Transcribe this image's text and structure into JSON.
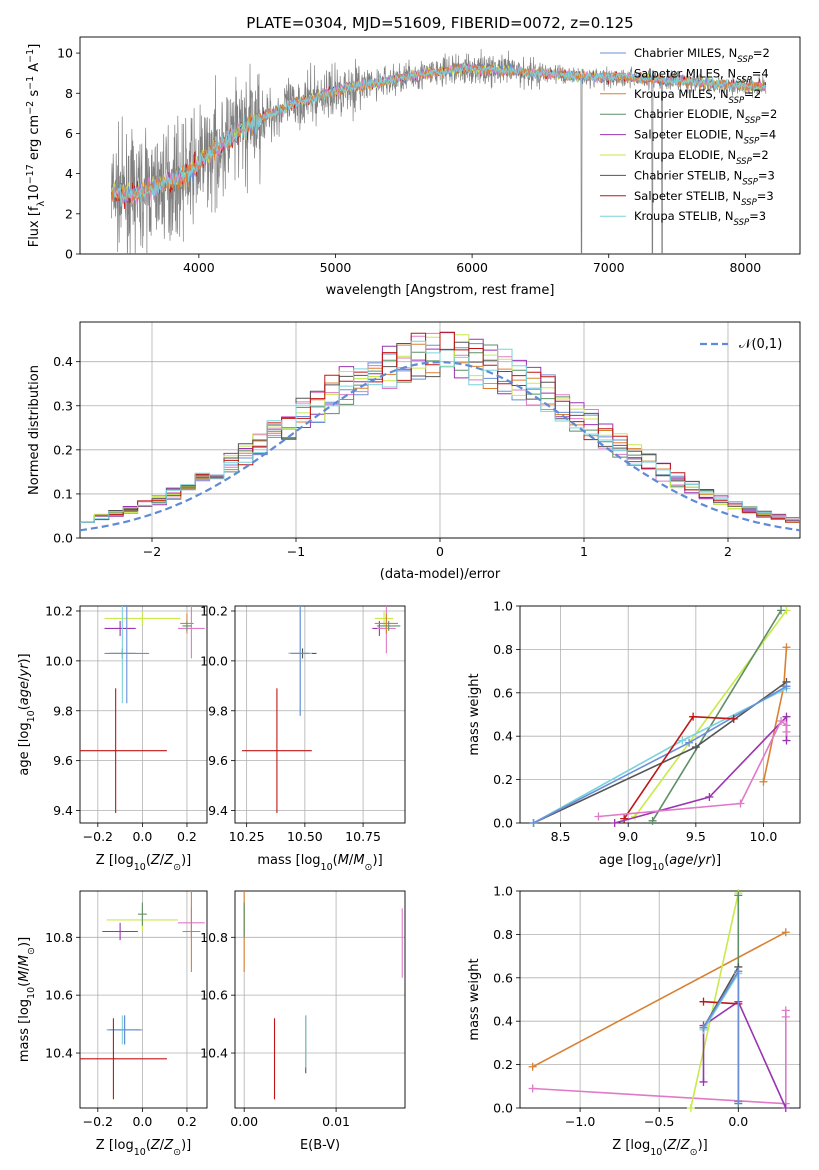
{
  "colors": {
    "chabrier_miles": "#6a8fd8",
    "salpeter_miles": "#e07ac8",
    "kroupa_miles": "#d98032",
    "chabrier_elodie": "#5f8f66",
    "salpeter_elodie": "#9a35b0",
    "kroupa_elodie": "#c8ea4a",
    "chabrier_stelib": "#555555",
    "salpeter_stelib": "#c01616",
    "kroupa_stelib": "#79d3dc",
    "spectrum": "#808080",
    "normal": "#5f8ad6",
    "grid": "#b0b0b0"
  },
  "chart_data": [
    {
      "id": "spectrum",
      "type": "line",
      "title": "PLATE=0304, MJD=51609, FIBERID=0072, z=0.125",
      "xlabel": "wavelength [Angstrom, rest frame]",
      "ylabel": "Flux [f_λ10^-17 erg cm^-2 s^-1 A^-1]",
      "xlim": [
        3130,
        8400
      ],
      "ylim": [
        0,
        10.8
      ],
      "xticks": [
        4000,
        5000,
        6000,
        7000,
        8000
      ],
      "yticks": [
        0,
        2,
        4,
        6,
        8,
        10
      ],
      "grid": false,
      "legend_position": "top-right",
      "legend": [
        {
          "name": "Chabrier MILES, N_SSP=2",
          "color": "chabrier_miles"
        },
        {
          "name": "Salpeter MILES, N_SSP=4",
          "color": "salpeter_miles"
        },
        {
          "name": "Kroupa MILES, N_SSP=2",
          "color": "kroupa_miles"
        },
        {
          "name": "Chabrier ELODIE, N_SSP=2",
          "color": "chabrier_elodie"
        },
        {
          "name": "Salpeter ELODIE, N_SSP=4",
          "color": "salpeter_elodie"
        },
        {
          "name": "Kroupa ELODIE, N_SSP=2",
          "color": "kroupa_elodie"
        },
        {
          "name": "Chabrier STELIB, N_SSP=3",
          "color": "chabrier_stelib"
        },
        {
          "name": "Salpeter STELIB, N_SSP=3",
          "color": "salpeter_stelib"
        },
        {
          "name": "Kroupa STELIB, N_SSP=3",
          "color": "kroupa_stelib"
        }
      ],
      "continuum_x": [
        3360,
        3500,
        3700,
        3900,
        4100,
        4300,
        4500,
        4700,
        4900,
        5100,
        5300,
        5500,
        5700,
        5900,
        6100,
        6300,
        6500,
        6700,
        6900,
        7100,
        7300,
        7500,
        7700,
        7900,
        8150
      ],
      "continuum_y": [
        3.1,
        2.9,
        3.4,
        3.9,
        5.1,
        6.1,
        6.9,
        7.5,
        7.9,
        8.3,
        8.5,
        8.8,
        9.0,
        9.2,
        9.2,
        9.1,
        9.0,
        8.9,
        8.8,
        8.8,
        8.7,
        8.6,
        8.5,
        8.4,
        8.3
      ]
    },
    {
      "id": "residuals",
      "type": "step",
      "xlabel": "(data-model)/error",
      "ylabel": "Normed distribution",
      "xlim": [
        -2.5,
        2.5
      ],
      "ylim": [
        0,
        0.49
      ],
      "xticks": [
        -2,
        -1,
        0,
        1,
        2
      ],
      "yticks": [
        0.0,
        0.1,
        0.2,
        0.3,
        0.4
      ],
      "grid": true,
      "legend_position": "top-right",
      "normal_label": "𝒩(0,1)",
      "bin_width": 0.1,
      "bin_start": -2.5
    },
    {
      "id": "age_vs_Z",
      "type": "errorbar",
      "xlabel": "Z [log10(Z/Z⊙)]",
      "ylabel": "age  [log10(age/yr)]",
      "xlim": [
        -0.28,
        0.29
      ],
      "ylim": [
        9.35,
        10.22
      ],
      "xticks": [
        -0.2,
        0.0,
        0.2
      ],
      "yticks": [
        9.4,
        9.6,
        9.8,
        10.0,
        10.2
      ],
      "grid": true,
      "points": [
        {
          "color": "kroupa_elodie",
          "x": 0.0,
          "y": 10.17,
          "xerr": 0.17,
          "yerr": 0.03
        },
        {
          "color": "salpeter_elodie",
          "x": -0.1,
          "y": 10.13,
          "xerr": 0.07,
          "yerr": 0.03
        },
        {
          "color": "salpeter_miles",
          "x": 0.22,
          "y": 10.13,
          "xerr": 0.06,
          "yerr": 0.12
        },
        {
          "color": "kroupa_miles",
          "x": 0.2,
          "y": 10.15,
          "xerr": 0.03,
          "yerr": 0.04
        },
        {
          "color": "chabrier_elodie",
          "x": 0.2,
          "y": 10.14,
          "xerr": 0.02,
          "yerr": 0.02
        },
        {
          "color": "chabrier_stelib",
          "x": -0.09,
          "y": 10.03,
          "xerr": 0.06,
          "yerr": 0.02
        },
        {
          "color": "kroupa_stelib",
          "x": -0.09,
          "y": 10.03,
          "xerr": 0.05,
          "yerr": 0.2
        },
        {
          "color": "chabrier_miles",
          "x": -0.07,
          "y": 10.03,
          "xerr": 0.1,
          "yerr": 0.2
        },
        {
          "color": "salpeter_stelib",
          "x": -0.12,
          "y": 9.64,
          "xerr": 0.23,
          "yerr": 0.25
        }
      ]
    },
    {
      "id": "age_vs_mass",
      "type": "errorbar",
      "xlabel": "mass [log10(M/M⊙)]",
      "ylabel": "",
      "xlim": [
        10.2,
        10.93
      ],
      "ylim": [
        9.35,
        10.22
      ],
      "xticks": [
        10.25,
        10.5,
        10.75
      ],
      "yticks": [
        9.4,
        9.6,
        9.8,
        10.0,
        10.2
      ],
      "grid": true,
      "points": [
        {
          "color": "kroupa_elodie",
          "x": 10.84,
          "y": 10.17,
          "xerr": 0.04,
          "yerr": 0.03
        },
        {
          "color": "salpeter_elodie",
          "x": 10.82,
          "y": 10.13,
          "xerr": 0.03,
          "yerr": 0.03
        },
        {
          "color": "salpeter_miles",
          "x": 10.85,
          "y": 10.13,
          "xerr": 0.04,
          "yerr": 0.1
        },
        {
          "color": "kroupa_miles",
          "x": 10.85,
          "y": 10.15,
          "xerr": 0.05,
          "yerr": 0.04
        },
        {
          "color": "chabrier_elodie",
          "x": 10.86,
          "y": 10.14,
          "xerr": 0.05,
          "yerr": 0.02
        },
        {
          "color": "chabrier_stelib",
          "x": 10.49,
          "y": 10.03,
          "xerr": 0.06,
          "yerr": 0.02
        },
        {
          "color": "kroupa_stelib",
          "x": 10.48,
          "y": 10.03,
          "xerr": 0.05,
          "yerr": 0.25
        },
        {
          "color": "chabrier_miles",
          "x": 10.48,
          "y": 10.03,
          "xerr": 0.04,
          "yerr": 0.25
        },
        {
          "color": "salpeter_stelib",
          "x": 10.38,
          "y": 9.64,
          "xerr": 0.15,
          "yerr": 0.25
        }
      ]
    },
    {
      "id": "massweight_vs_age",
      "type": "line",
      "xlabel": "age  [log10(age/yr)]",
      "ylabel": "mass weight",
      "xlim": [
        8.2,
        10.27
      ],
      "ylim": [
        0,
        1.0
      ],
      "xticks": [
        8.5,
        9.0,
        9.5,
        10.0
      ],
      "yticks": [
        0.0,
        0.2,
        0.4,
        0.6,
        0.8,
        1.0
      ],
      "grid": true,
      "series": [
        {
          "color": "kroupa_elodie",
          "x": [
            9.05,
            10.17
          ],
          "y": [
            0.03,
            0.98
          ]
        },
        {
          "color": "chabrier_elodie",
          "x": [
            9.18,
            10.13
          ],
          "y": [
            0.01,
            0.98
          ]
        },
        {
          "color": "kroupa_miles",
          "x": [
            10.0,
            10.15,
            10.17
          ],
          "y": [
            0.19,
            0.63,
            0.81
          ]
        },
        {
          "color": "chabrier_stelib",
          "x": [
            8.3,
            9.5,
            10.17
          ],
          "y": [
            0.0,
            0.35,
            0.65
          ]
        },
        {
          "color": "kroupa_stelib",
          "x": [
            8.3,
            9.4,
            10.17
          ],
          "y": [
            0.0,
            0.38,
            0.62
          ]
        },
        {
          "color": "chabrier_miles",
          "x": [
            8.3,
            9.45,
            10.17
          ],
          "y": [
            0.0,
            0.37,
            0.63
          ]
        },
        {
          "color": "salpeter_stelib",
          "x": [
            8.97,
            9.48,
            9.78
          ],
          "y": [
            0.02,
            0.49,
            0.48
          ]
        },
        {
          "color": "salpeter_elodie",
          "x": [
            8.9,
            9.6,
            10.17,
            10.17
          ],
          "y": [
            0.0,
            0.12,
            0.49,
            0.38
          ]
        },
        {
          "color": "salpeter_miles",
          "x": [
            8.78,
            9.83,
            10.13,
            10.17,
            10.17
          ],
          "y": [
            0.03,
            0.09,
            0.47,
            0.45,
            0.42
          ]
        }
      ]
    },
    {
      "id": "mass_vs_Z",
      "type": "errorbar",
      "xlabel": "Z [log10(Z/Z⊙)]",
      "ylabel": "mass [log10(M/M⊙)]",
      "xlim": [
        -0.28,
        0.29
      ],
      "ylim": [
        10.21,
        10.96
      ],
      "xticks": [
        -0.2,
        0.0,
        0.2
      ],
      "yticks": [
        10.4,
        10.6,
        10.8
      ],
      "grid": true,
      "points": [
        {
          "color": "kroupa_elodie",
          "x": 0.0,
          "y": 10.86,
          "xerr": 0.16,
          "yerr": 0.04
        },
        {
          "color": "salpeter_elodie",
          "x": -0.1,
          "y": 10.82,
          "xerr": 0.08,
          "yerr": 0.03
        },
        {
          "color": "salpeter_miles",
          "x": 0.22,
          "y": 10.85,
          "xerr": 0.06,
          "yerr": 0.05
        },
        {
          "color": "kroupa_miles",
          "x": 0.22,
          "y": 10.82,
          "xerr": 0.04,
          "yerr": 0.14
        },
        {
          "color": "chabrier_elodie",
          "x": 0.0,
          "y": 10.88,
          "xerr": 0.02,
          "yerr": 0.04
        },
        {
          "color": "chabrier_stelib",
          "x": -0.08,
          "y": 10.48,
          "xerr": 0.07,
          "yerr": 0.05
        },
        {
          "color": "kroupa_stelib",
          "x": -0.09,
          "y": 10.48,
          "xerr": 0.06,
          "yerr": 0.05
        },
        {
          "color": "chabrier_miles",
          "x": -0.08,
          "y": 10.48,
          "xerr": 0.08,
          "yerr": 0.05
        },
        {
          "color": "salpeter_stelib",
          "x": -0.13,
          "y": 10.38,
          "xerr": 0.24,
          "yerr": 0.14
        }
      ]
    },
    {
      "id": "mass_vs_EBV",
      "type": "errorbar",
      "xlabel": "E(B-V)",
      "ylabel": "",
      "xlim": [
        -0.001,
        0.0175
      ],
      "ylim": [
        10.21,
        10.96
      ],
      "xticks": [
        0.0,
        0.01
      ],
      "xtick_labels": [
        "0.00",
        "0.01"
      ],
      "yticks": [
        10.4,
        10.6,
        10.8
      ],
      "grid": true,
      "points": [
        {
          "color": "kroupa_elodie",
          "x": 0.0,
          "y": 10.86,
          "xerr": 0.0,
          "yerr": 0.04
        },
        {
          "color": "kroupa_miles",
          "x": 0.0,
          "y": 10.82,
          "xerr": 0.0,
          "yerr": 0.14
        },
        {
          "color": "chabrier_elodie",
          "x": 0.0,
          "y": 10.86,
          "xerr": 0.0,
          "yerr": 0.06
        },
        {
          "color": "salpeter_miles",
          "x": 0.0172,
          "y": 10.78,
          "xerr": 0.0,
          "yerr": 0.12
        },
        {
          "color": "chabrier_stelib",
          "x": 0.0067,
          "y": 10.43,
          "xerr": 0.0,
          "yerr": 0.1
        },
        {
          "color": "kroupa_stelib",
          "x": 0.0067,
          "y": 10.44,
          "xerr": 0.0,
          "yerr": 0.09
        },
        {
          "color": "salpeter_stelib",
          "x": 0.0033,
          "y": 10.38,
          "xerr": 0.0,
          "yerr": 0.14
        }
      ]
    },
    {
      "id": "massweight_vs_Z",
      "type": "line",
      "xlabel": "Z [log10(Z/Z⊙)]",
      "ylabel": "mass weight",
      "xlim": [
        -1.38,
        0.39
      ],
      "ylim": [
        0,
        1.0
      ],
      "xticks": [
        -1.0,
        -0.5,
        0.0
      ],
      "yticks": [
        0.0,
        0.2,
        0.4,
        0.6,
        0.8,
        1.0
      ],
      "grid": true,
      "series": [
        {
          "color": "kroupa_miles",
          "x": [
            -1.3,
            0.3
          ],
          "y": [
            0.19,
            0.81
          ]
        },
        {
          "color": "salpeter_miles",
          "x": [
            -1.3,
            0.3,
            0.3,
            0.3
          ],
          "y": [
            0.09,
            0.02,
            0.42,
            0.45
          ]
        },
        {
          "color": "kroupa_elodie",
          "x": [
            -0.3,
            0.0
          ],
          "y": [
            0.0,
            0.99
          ]
        },
        {
          "color": "chabrier_elodie",
          "x": [
            0.0,
            0.0
          ],
          "y": [
            0.02,
            0.98
          ]
        },
        {
          "color": "salpeter_elodie",
          "x": [
            -0.22,
            -0.22,
            0.0,
            0.3
          ],
          "y": [
            0.12,
            0.38,
            0.49,
            0.0
          ]
        },
        {
          "color": "salpeter_stelib",
          "x": [
            -0.22,
            0.0
          ],
          "y": [
            0.49,
            0.48
          ]
        },
        {
          "color": "chabrier_stelib",
          "x": [
            -0.22,
            0.0,
            0.0
          ],
          "y": [
            0.37,
            0.65,
            0.03
          ]
        },
        {
          "color": "kroupa_stelib",
          "x": [
            -0.22,
            0.0,
            0.0
          ],
          "y": [
            0.36,
            0.62,
            0.03
          ]
        },
        {
          "color": "chabrier_miles",
          "x": [
            -0.22,
            0.0,
            0.0
          ],
          "y": [
            0.37,
            0.63,
            0.03
          ]
        }
      ]
    }
  ]
}
